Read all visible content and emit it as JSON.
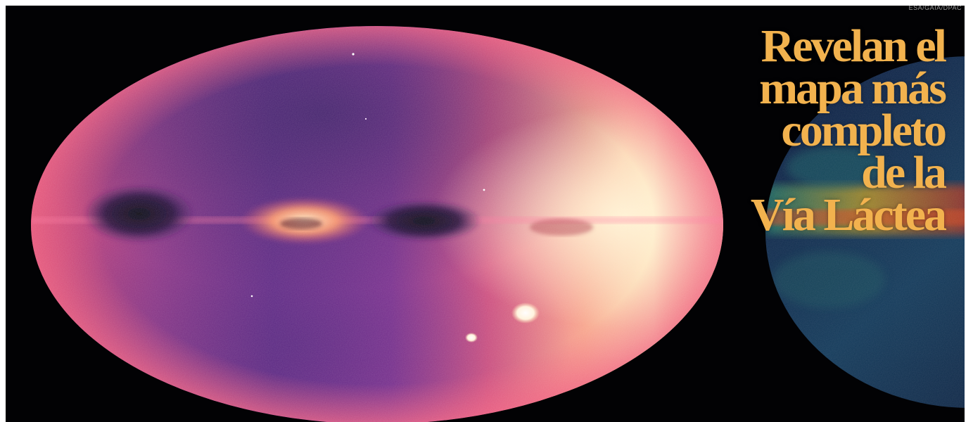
{
  "credit": "ESA/GAIA/DPAC",
  "headline": {
    "lines": [
      "Revelan el",
      "mapa más",
      "completo",
      "de la",
      "Vía Láctea"
    ]
  },
  "colors": {
    "headline": "#f2b24e",
    "background": "#020204",
    "map_bright": "#fde6b0",
    "map_pink": "#e8557a",
    "map_purple": "#5a2a86"
  }
}
